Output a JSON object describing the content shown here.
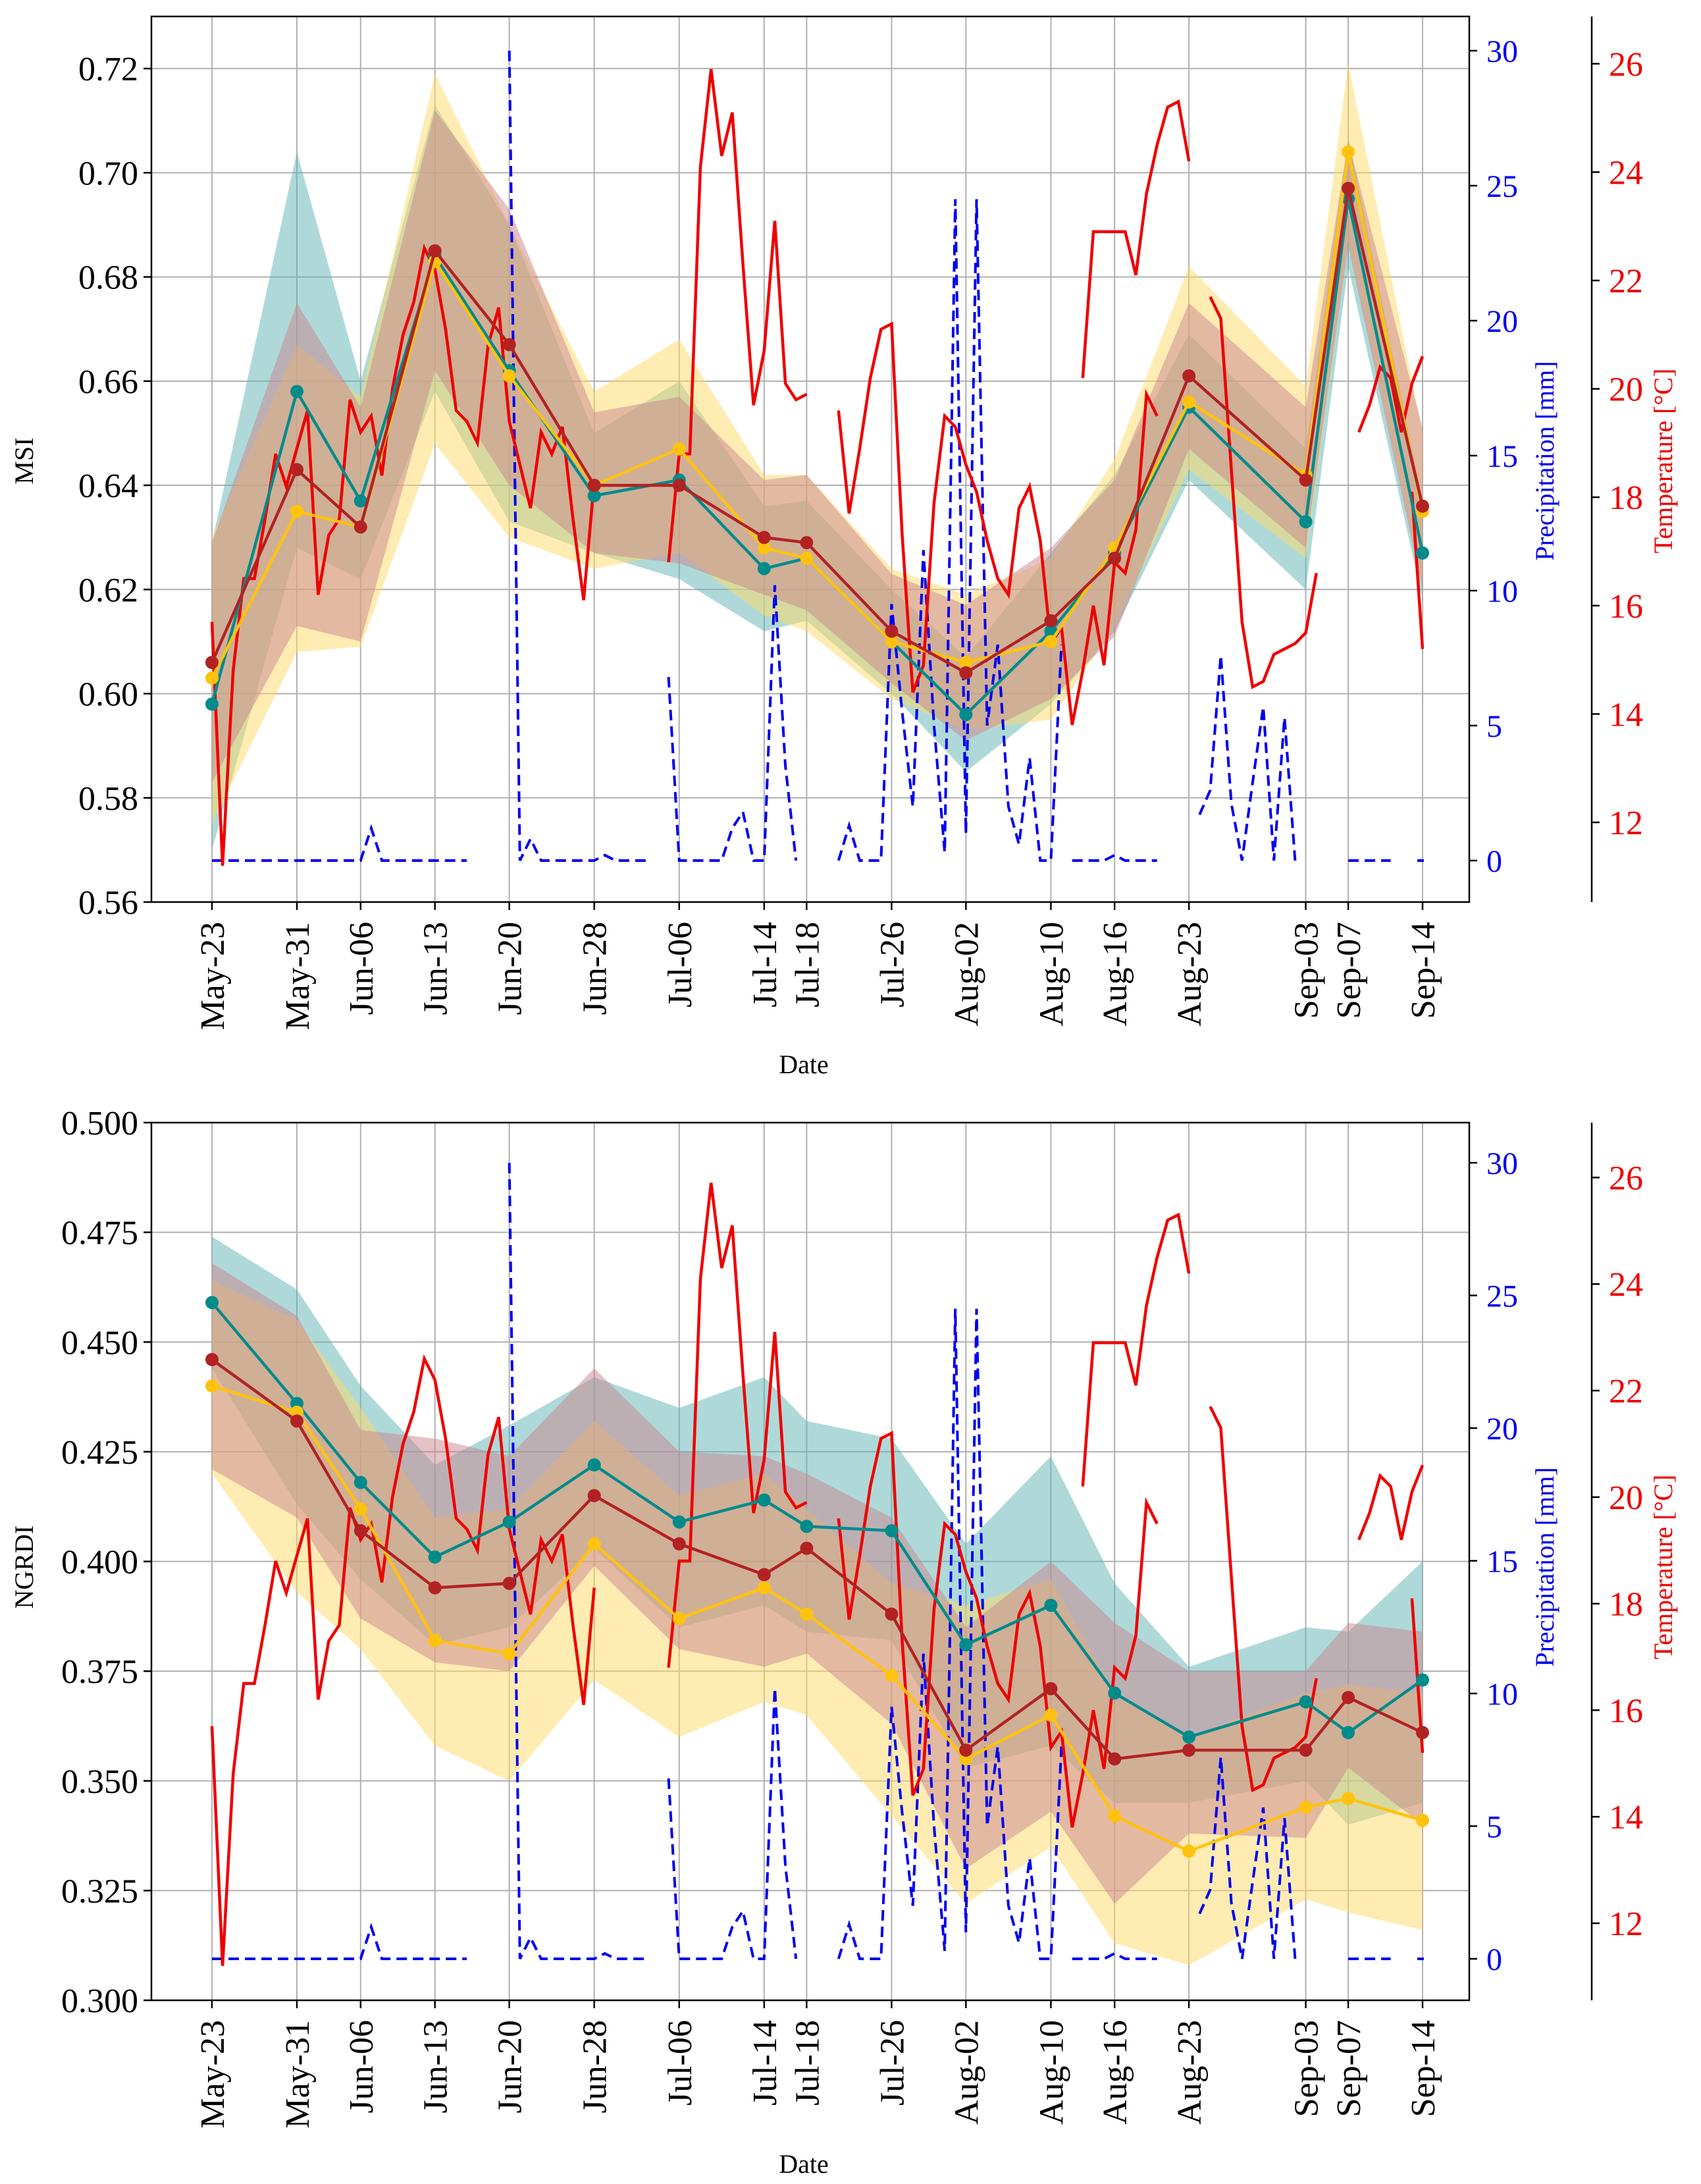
{
  "chart_data": [
    {
      "type": "line",
      "xlabel": "Date",
      "ylabel": "MSI",
      "ylim": [
        0.56,
        0.73
      ],
      "yticks": [
        "0.56",
        "0.58",
        "0.60",
        "0.62",
        "0.64",
        "0.66",
        "0.68",
        "0.70",
        "0.72"
      ],
      "precip_label": "Precipitation [mm]",
      "precip_ticks": [
        "0",
        "5",
        "10",
        "15",
        "20",
        "25",
        "30"
      ],
      "temp_label": "Temperature [°C]",
      "temp_ticks": [
        "12",
        "14",
        "16",
        "18",
        "20",
        "22",
        "24",
        "26"
      ],
      "grid": true,
      "series": [
        {
          "name": "teal",
          "color": "#008b8b",
          "band_color": "#5fb3b3",
          "values": [
            0.598,
            0.658,
            0.637,
            0.684,
            0.662,
            0.638,
            0.641,
            0.624,
            0.626,
            0.61,
            0.596,
            0.612,
            0.627,
            0.655,
            0.633,
            0.695,
            0.627
          ],
          "lower": [
            0.57,
            0.628,
            0.622,
            0.658,
            0.633,
            0.627,
            0.622,
            0.612,
            0.614,
            0.6,
            0.585,
            0.598,
            0.612,
            0.641,
            0.62,
            0.682,
            0.618
          ],
          "upper": [
            0.629,
            0.704,
            0.66,
            0.713,
            0.69,
            0.65,
            0.66,
            0.636,
            0.637,
            0.62,
            0.607,
            0.627,
            0.642,
            0.669,
            0.647,
            0.707,
            0.637
          ]
        },
        {
          "name": "gold",
          "color": "#ffc20e",
          "band_color": "#ffd966",
          "values": [
            0.603,
            0.635,
            0.632,
            0.683,
            0.661,
            0.64,
            0.647,
            0.628,
            0.626,
            0.61,
            0.606,
            0.61,
            0.628,
            0.656,
            0.642,
            0.704,
            0.635
          ],
          "lower": [
            0.575,
            0.608,
            0.609,
            0.648,
            0.63,
            0.624,
            0.627,
            0.615,
            0.612,
            0.599,
            0.593,
            0.595,
            0.613,
            0.643,
            0.626,
            0.687,
            0.621
          ],
          "upper": [
            0.63,
            0.667,
            0.657,
            0.719,
            0.69,
            0.658,
            0.668,
            0.642,
            0.642,
            0.624,
            0.619,
            0.626,
            0.645,
            0.682,
            0.659,
            0.721,
            0.65
          ]
        },
        {
          "name": "red",
          "color": "#b22222",
          "band_color": "#c98690",
          "values": [
            0.606,
            0.643,
            0.632,
            0.685,
            0.667,
            0.64,
            0.64,
            0.63,
            0.629,
            0.612,
            0.604,
            0.614,
            0.626,
            0.661,
            0.641,
            0.697,
            0.636
          ],
          "lower": [
            0.583,
            0.613,
            0.61,
            0.662,
            0.64,
            0.627,
            0.625,
            0.619,
            0.616,
            0.602,
            0.591,
            0.599,
            0.611,
            0.647,
            0.628,
            0.686,
            0.62
          ],
          "upper": [
            0.629,
            0.675,
            0.655,
            0.712,
            0.693,
            0.654,
            0.657,
            0.641,
            0.642,
            0.623,
            0.617,
            0.628,
            0.641,
            0.675,
            0.655,
            0.706,
            0.651
          ]
        }
      ]
    },
    {
      "type": "line",
      "xlabel": "Date",
      "ylabel": "NGRDI",
      "ylim": [
        0.3,
        0.5
      ],
      "yticks": [
        "0.300",
        "0.325",
        "0.350",
        "0.375",
        "0.400",
        "0.425",
        "0.450",
        "0.475",
        "0.500"
      ],
      "precip_label": "Precipitation [mm]",
      "precip_ticks": [
        "0",
        "5",
        "10",
        "15",
        "20",
        "25",
        "30"
      ],
      "temp_label": "Temperature [°C]",
      "temp_ticks": [
        "12",
        "14",
        "16",
        "18",
        "20",
        "22",
        "24",
        "26"
      ],
      "grid": true,
      "series": [
        {
          "name": "teal",
          "color": "#008b8b",
          "band_color": "#5fb3b3",
          "values": [
            0.459,
            0.436,
            0.418,
            0.401,
            0.409,
            0.422,
            0.409,
            0.414,
            0.408,
            0.407,
            0.381,
            0.39,
            0.37,
            0.36,
            0.368,
            0.361,
            0.373
          ],
          "lower": [
            0.444,
            0.413,
            0.396,
            0.381,
            0.385,
            0.403,
            0.385,
            0.39,
            0.384,
            0.382,
            0.353,
            0.358,
            0.345,
            0.345,
            0.35,
            0.34,
            0.345
          ],
          "upper": [
            0.474,
            0.462,
            0.44,
            0.422,
            0.431,
            0.442,
            0.435,
            0.442,
            0.432,
            0.428,
            0.404,
            0.424,
            0.395,
            0.376,
            0.385,
            0.384,
            0.4
          ]
        },
        {
          "name": "gold",
          "color": "#ffc20e",
          "band_color": "#ffd966",
          "values": [
            0.44,
            0.434,
            0.412,
            0.382,
            0.379,
            0.404,
            0.387,
            0.394,
            0.388,
            0.374,
            0.355,
            0.365,
            0.342,
            0.334,
            0.344,
            0.346,
            0.341
          ],
          "lower": [
            0.42,
            0.393,
            0.38,
            0.358,
            0.35,
            0.373,
            0.36,
            0.368,
            0.365,
            0.342,
            0.322,
            0.335,
            0.313,
            0.308,
            0.323,
            0.32,
            0.316
          ],
          "upper": [
            0.464,
            0.455,
            0.435,
            0.41,
            0.412,
            0.432,
            0.415,
            0.42,
            0.412,
            0.395,
            0.39,
            0.396,
            0.37,
            0.36,
            0.37,
            0.372,
            0.37
          ]
        },
        {
          "name": "red",
          "color": "#b22222",
          "band_color": "#c98690",
          "values": [
            0.446,
            0.432,
            0.407,
            0.394,
            0.395,
            0.415,
            0.404,
            0.397,
            0.403,
            0.388,
            0.357,
            0.371,
            0.355,
            0.357,
            0.357,
            0.369,
            0.361
          ],
          "lower": [
            0.421,
            0.41,
            0.387,
            0.377,
            0.375,
            0.399,
            0.38,
            0.376,
            0.379,
            0.363,
            0.33,
            0.343,
            0.322,
            0.338,
            0.337,
            0.353,
            0.34
          ],
          "upper": [
            0.468,
            0.456,
            0.43,
            0.428,
            0.424,
            0.444,
            0.425,
            0.424,
            0.42,
            0.41,
            0.385,
            0.4,
            0.386,
            0.375,
            0.375,
            0.386,
            0.384
          ]
        }
      ]
    }
  ],
  "x_dates": [
    {
      "label": "May-23",
      "day": 0
    },
    {
      "label": "May-31",
      "day": 8
    },
    {
      "label": "Jun-06",
      "day": 14
    },
    {
      "label": "Jun-13",
      "day": 21
    },
    {
      "label": "Jun-20",
      "day": 28
    },
    {
      "label": "Jun-28",
      "day": 36
    },
    {
      "label": "Jul-06",
      "day": 44
    },
    {
      "label": "Jul-14",
      "day": 52
    },
    {
      "label": "Jul-18",
      "day": 56
    },
    {
      "label": "Jul-26",
      "day": 64
    },
    {
      "label": "Aug-02",
      "day": 71
    },
    {
      "label": "Aug-10",
      "day": 79
    },
    {
      "label": "Aug-16",
      "day": 85
    },
    {
      "label": "Aug-23",
      "day": 92
    },
    {
      "label": "Sep-03",
      "day": 103
    },
    {
      "label": "Sep-07",
      "day": 107
    },
    {
      "label": "Sep-14",
      "day": 114
    }
  ],
  "precip_series": {
    "name": "Precipitation [mm]",
    "color": "#0000ee",
    "range_mm": [
      -1.5,
      31
    ],
    "segments": [
      {
        "start_day": 0,
        "values": [
          0,
          0,
          0,
          0,
          0,
          0,
          0,
          0,
          0,
          0,
          0,
          0,
          0,
          0,
          0,
          1.2,
          0,
          0,
          0,
          0,
          0,
          0,
          0,
          0,
          0
        ]
      },
      {
        "start_day": 28,
        "values": [
          30,
          0,
          0.8,
          0,
          0,
          0,
          0,
          0,
          0,
          0.2,
          0,
          0,
          0,
          0
        ]
      },
      {
        "start_day": 43,
        "values": [
          6.8,
          0,
          0,
          0,
          0,
          0,
          1.2,
          1.8,
          0,
          0,
          10.2,
          3.5,
          0
        ]
      },
      {
        "start_day": 59,
        "values": [
          0,
          1.3,
          0,
          0,
          0,
          9.5,
          5.5,
          2,
          11.5,
          5,
          0.3,
          24.5,
          1,
          24.5,
          5,
          8,
          2,
          0.6,
          3.8,
          0,
          0,
          8
        ]
      },
      {
        "start_day": 81,
        "values": [
          0,
          0,
          0,
          0,
          0.2,
          0,
          0,
          0,
          0
        ]
      },
      {
        "start_day": 93,
        "values": [
          1.7,
          2.6,
          7.6,
          2.1,
          0,
          2.9,
          5.7,
          0,
          5.3,
          0
        ]
      },
      {
        "start_day": 107,
        "values": [
          0,
          0,
          0,
          0,
          0
        ]
      },
      {
        "start_day": 114,
        "values": [
          0
        ]
      }
    ]
  },
  "temp_series": {
    "name": "Temperature [°C]",
    "color": "#ee0000",
    "range_c": [
      10.5,
      27
    ],
    "segments": [
      {
        "start_day": 0,
        "values": [
          15.7,
          11.2,
          14.8,
          16.5,
          16.5,
          17.6,
          18.8,
          18.2,
          18.9,
          19.6,
          16.2,
          17.3,
          17.6,
          19.8,
          19.2,
          19.5,
          18.4,
          20,
          21,
          21.6,
          22.6,
          22.2,
          21.1,
          19.6,
          19.4,
          19,
          20.8,
          21.5,
          19.4,
          18.6,
          17.8,
          19.2,
          18.8,
          19.3,
          17.6,
          16.1,
          18.3
        ]
      },
      {
        "start_day": 43,
        "values": [
          16.8,
          18.8,
          18.8,
          24.1,
          25.9,
          24.3,
          25.1,
          22.3,
          19.7,
          20.7,
          23.1,
          20.1,
          19.8,
          19.9
        ]
      },
      {
        "start_day": 59,
        "values": [
          19.6,
          17.7,
          18.9,
          20.2,
          21.1,
          21.2,
          17.3,
          14.4,
          14.9,
          17.9,
          19.5,
          19.3,
          18.6,
          18.1,
          17.2,
          16.5,
          16.2,
          17.8,
          18.2,
          17.2,
          15.3,
          15.6,
          13.8,
          14.8,
          16,
          14.9,
          16.8,
          16.6,
          17.4,
          19.9,
          19.5
        ]
      },
      {
        "start_day": 82,
        "values": [
          20.2,
          22.9,
          22.9,
          22.9,
          22.9,
          22.1,
          23.6,
          24.5,
          25.2,
          25.3,
          24.2
        ]
      },
      {
        "start_day": 94,
        "values": [
          21.7,
          21.3,
          18.5,
          15.7,
          14.5,
          14.6,
          15.1,
          15.2,
          15.3,
          15.5,
          16.6
        ]
      },
      {
        "start_day": 108,
        "values": [
          19.2,
          19.7,
          20.4,
          20.2,
          19.2,
          20.1,
          20.6
        ]
      },
      {
        "start_day": 113,
        "values": [
          18.1,
          15.2
        ]
      }
    ]
  }
}
